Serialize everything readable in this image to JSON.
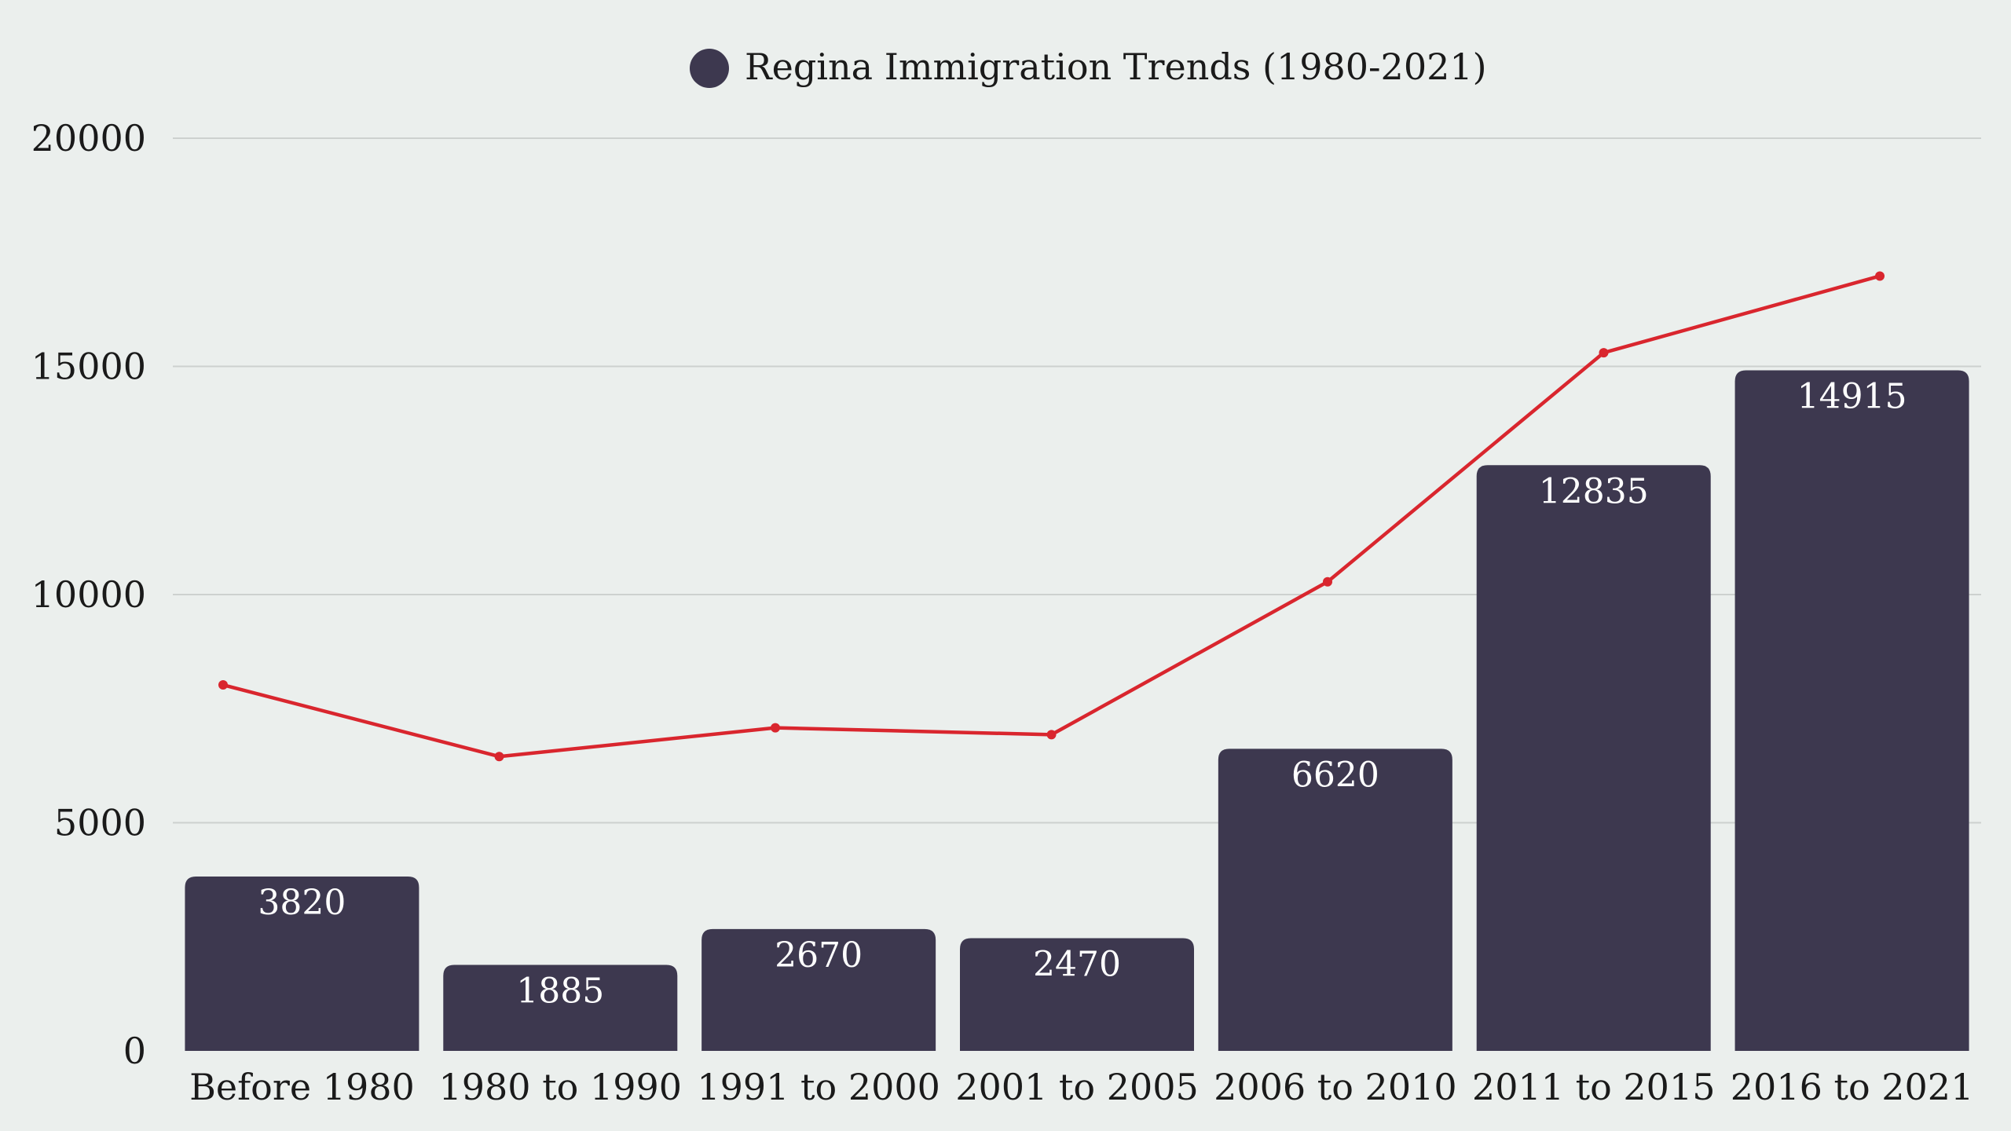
{
  "chart_data": {
    "type": "bar",
    "legend": {
      "position": "top-center",
      "label": "Regina Immigration Trends (1980-2021)",
      "marker_color": "#3d384f"
    },
    "categories": [
      "Before 1980",
      "1980 to 1990",
      "1991 to 2000",
      "2001 to 2005",
      "2006 to 2010",
      "2011 to 2015",
      "2016 to 2021"
    ],
    "series": [
      {
        "name": "Regina Immigration Trends (1980-2021)",
        "type": "bar",
        "color": "#3d384f",
        "values": [
          3820,
          1885,
          2670,
          2470,
          6620,
          12835,
          14915
        ],
        "data_labels": [
          "3820",
          "1885",
          "2670",
          "2470",
          "6620",
          "12835",
          "14915"
        ]
      },
      {
        "type": "line",
        "color": "#d9262e",
        "values": [
          8020,
          6450,
          7080,
          6930,
          10280,
          15300,
          16980
        ]
      }
    ],
    "y_axis": {
      "min": 0,
      "max": 20000,
      "ticks": [
        0,
        5000,
        10000,
        15000,
        20000
      ],
      "tick_labels": [
        "0",
        "5000",
        "10000",
        "15000",
        "20000"
      ]
    },
    "grid": {
      "horizontal": true,
      "vertical": false,
      "color": "#cdd1cf"
    }
  }
}
